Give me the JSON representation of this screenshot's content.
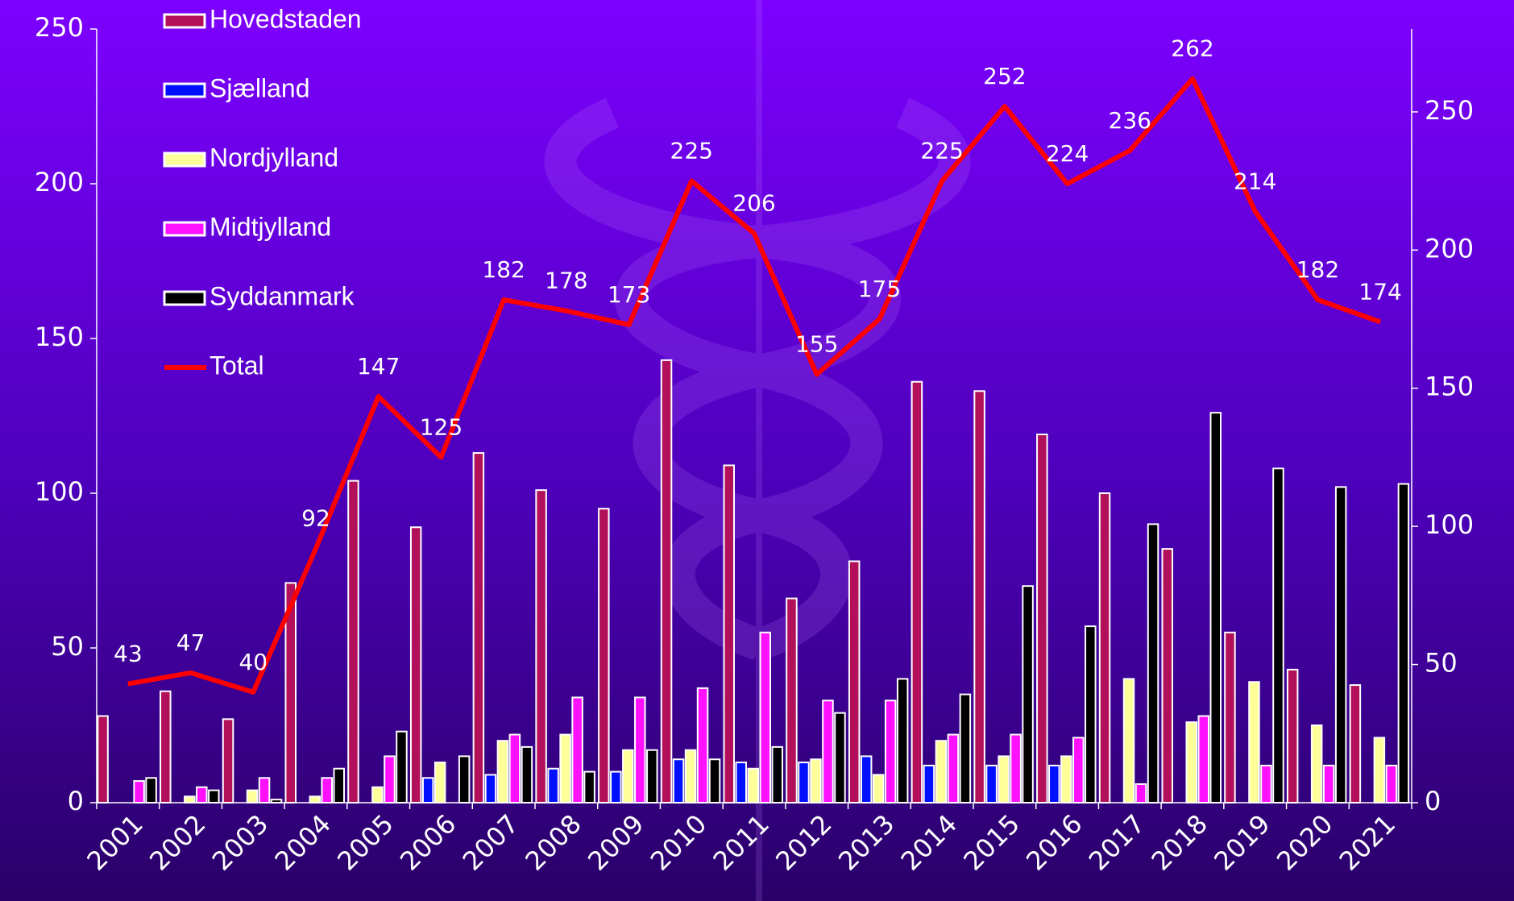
{
  "chart_data": {
    "type": "bar",
    "categories": [
      "2001",
      "2002",
      "2003",
      "2004",
      "2005",
      "2006",
      "2007",
      "2008",
      "2009",
      "2010",
      "2011",
      "2012",
      "2013",
      "2014",
      "2015",
      "2016",
      "2017",
      "2018",
      "2019",
      "2020",
      "2021"
    ],
    "series": [
      {
        "name": "Hovedstaden",
        "color": "#b3105c",
        "values": [
          28,
          36,
          27,
          71,
          104,
          89,
          113,
          101,
          95,
          143,
          109,
          66,
          78,
          136,
          133,
          119,
          100,
          82,
          55,
          43,
          38
        ]
      },
      {
        "name": "Sjælland",
        "color": "#0010ff",
        "values": [
          0,
          0,
          0,
          0,
          0,
          8,
          9,
          11,
          10,
          14,
          13,
          13,
          15,
          12,
          12,
          12,
          0,
          0,
          0,
          0,
          0
        ]
      },
      {
        "name": "Nordjylland",
        "color": "#ffff99",
        "values": [
          0,
          2,
          4,
          2,
          5,
          13,
          20,
          22,
          17,
          17,
          11,
          14,
          9,
          20,
          15,
          15,
          40,
          26,
          39,
          25,
          21
        ]
      },
      {
        "name": "Midtjylland",
        "color": "#ff10ff",
        "values": [
          7,
          5,
          8,
          8,
          15,
          0,
          22,
          34,
          34,
          37,
          55,
          33,
          33,
          22,
          22,
          21,
          6,
          28,
          12,
          12,
          12
        ]
      },
      {
        "name": "Syddanmark",
        "color": "#000000",
        "values": [
          8,
          4,
          1,
          11,
          23,
          15,
          18,
          10,
          17,
          14,
          18,
          29,
          40,
          35,
          70,
          57,
          90,
          126,
          108,
          102,
          103
        ]
      },
      {
        "name": "Total",
        "type": "line",
        "axis": "y2",
        "color": "#ff0000",
        "values": [
          43,
          47,
          40,
          92,
          147,
          125,
          182,
          178,
          173,
          225,
          206,
          155,
          175,
          225,
          252,
          224,
          236,
          262,
          214,
          182,
          174
        ]
      }
    ],
    "ylim": [
      0,
      250
    ],
    "yticks": [
      0,
      50,
      100,
      150,
      200,
      250
    ],
    "y2lim": [
      0,
      280
    ],
    "y2ticks": [
      0,
      50,
      100,
      150,
      200,
      250
    ],
    "legend": "top-left"
  }
}
